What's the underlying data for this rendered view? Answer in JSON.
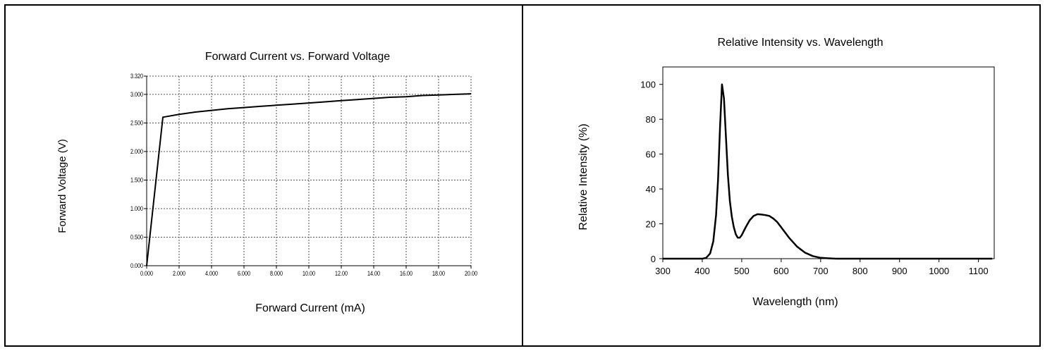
{
  "chart_data": [
    {
      "type": "line",
      "title": "Forward Current vs. Forward Voltage",
      "xlabel": "Forward Current (mA)",
      "ylabel": "Forward Voltage (V)",
      "xlim": [
        0,
        20
      ],
      "ylim": [
        0,
        3.32
      ],
      "grid": true,
      "x_ticks": [
        0,
        2,
        4,
        6,
        8,
        10,
        12,
        14,
        16,
        18,
        20
      ],
      "x_tick_labels": [
        "0.000",
        "2.000",
        "4.000",
        "6.000",
        "8.000",
        "10.00",
        "12.00",
        "14.00",
        "16.00",
        "18.00",
        "20.00"
      ],
      "y_ticks": [
        0,
        0.5,
        1.0,
        1.5,
        2.0,
        2.5,
        3.0,
        3.32
      ],
      "y_tick_labels": [
        "0.000",
        "0.500",
        "1.000",
        "1.500",
        "2.000",
        "2.500",
        "3.000",
        "3.320"
      ],
      "series": [
        {
          "x": [
            0,
            1,
            2,
            3,
            4,
            5,
            6,
            7,
            8,
            9,
            10,
            11,
            12,
            13,
            14,
            15,
            16,
            17,
            18,
            19,
            20
          ],
          "y": [
            0,
            2.6,
            2.65,
            2.69,
            2.72,
            2.75,
            2.77,
            2.79,
            2.81,
            2.83,
            2.85,
            2.87,
            2.89,
            2.91,
            2.93,
            2.95,
            2.96,
            2.98,
            2.99,
            3.0,
            3.01
          ]
        }
      ]
    },
    {
      "type": "line",
      "title": "Relative Intensity vs. Wavelength",
      "xlabel": "Wavelength (nm)",
      "ylabel": "Relative Intensity (%)",
      "xlim": [
        300,
        1140
      ],
      "ylim": [
        0,
        110
      ],
      "grid": false,
      "x_ticks": [
        300,
        400,
        500,
        600,
        700,
        800,
        900,
        1000,
        1100
      ],
      "x_tick_labels": [
        "300",
        "400",
        "500",
        "600",
        "700",
        "800",
        "900",
        "1000",
        "1100"
      ],
      "y_ticks": [
        0,
        20,
        40,
        60,
        80,
        100
      ],
      "y_tick_labels": [
        "0",
        "20",
        "40",
        "60",
        "80",
        "100"
      ],
      "series": [
        {
          "x": [
            300,
            380,
            400,
            410,
            420,
            428,
            435,
            440,
            445,
            450,
            455,
            460,
            465,
            470,
            475,
            480,
            485,
            490,
            495,
            500,
            510,
            520,
            530,
            540,
            550,
            560,
            570,
            580,
            590,
            600,
            620,
            640,
            660,
            680,
            700,
            720,
            740,
            760,
            800,
            900,
            1000,
            1135
          ],
          "y": [
            0,
            0,
            0,
            0.5,
            3,
            10,
            25,
            45,
            75,
            100,
            92,
            70,
            48,
            33,
            24,
            18,
            14,
            12,
            12,
            13.5,
            18,
            22,
            24.5,
            25.5,
            25.3,
            25,
            24.5,
            23,
            21,
            18,
            12,
            7,
            3.5,
            1.5,
            0.5,
            0.2,
            0,
            0,
            0,
            0,
            0,
            0
          ]
        }
      ]
    }
  ]
}
